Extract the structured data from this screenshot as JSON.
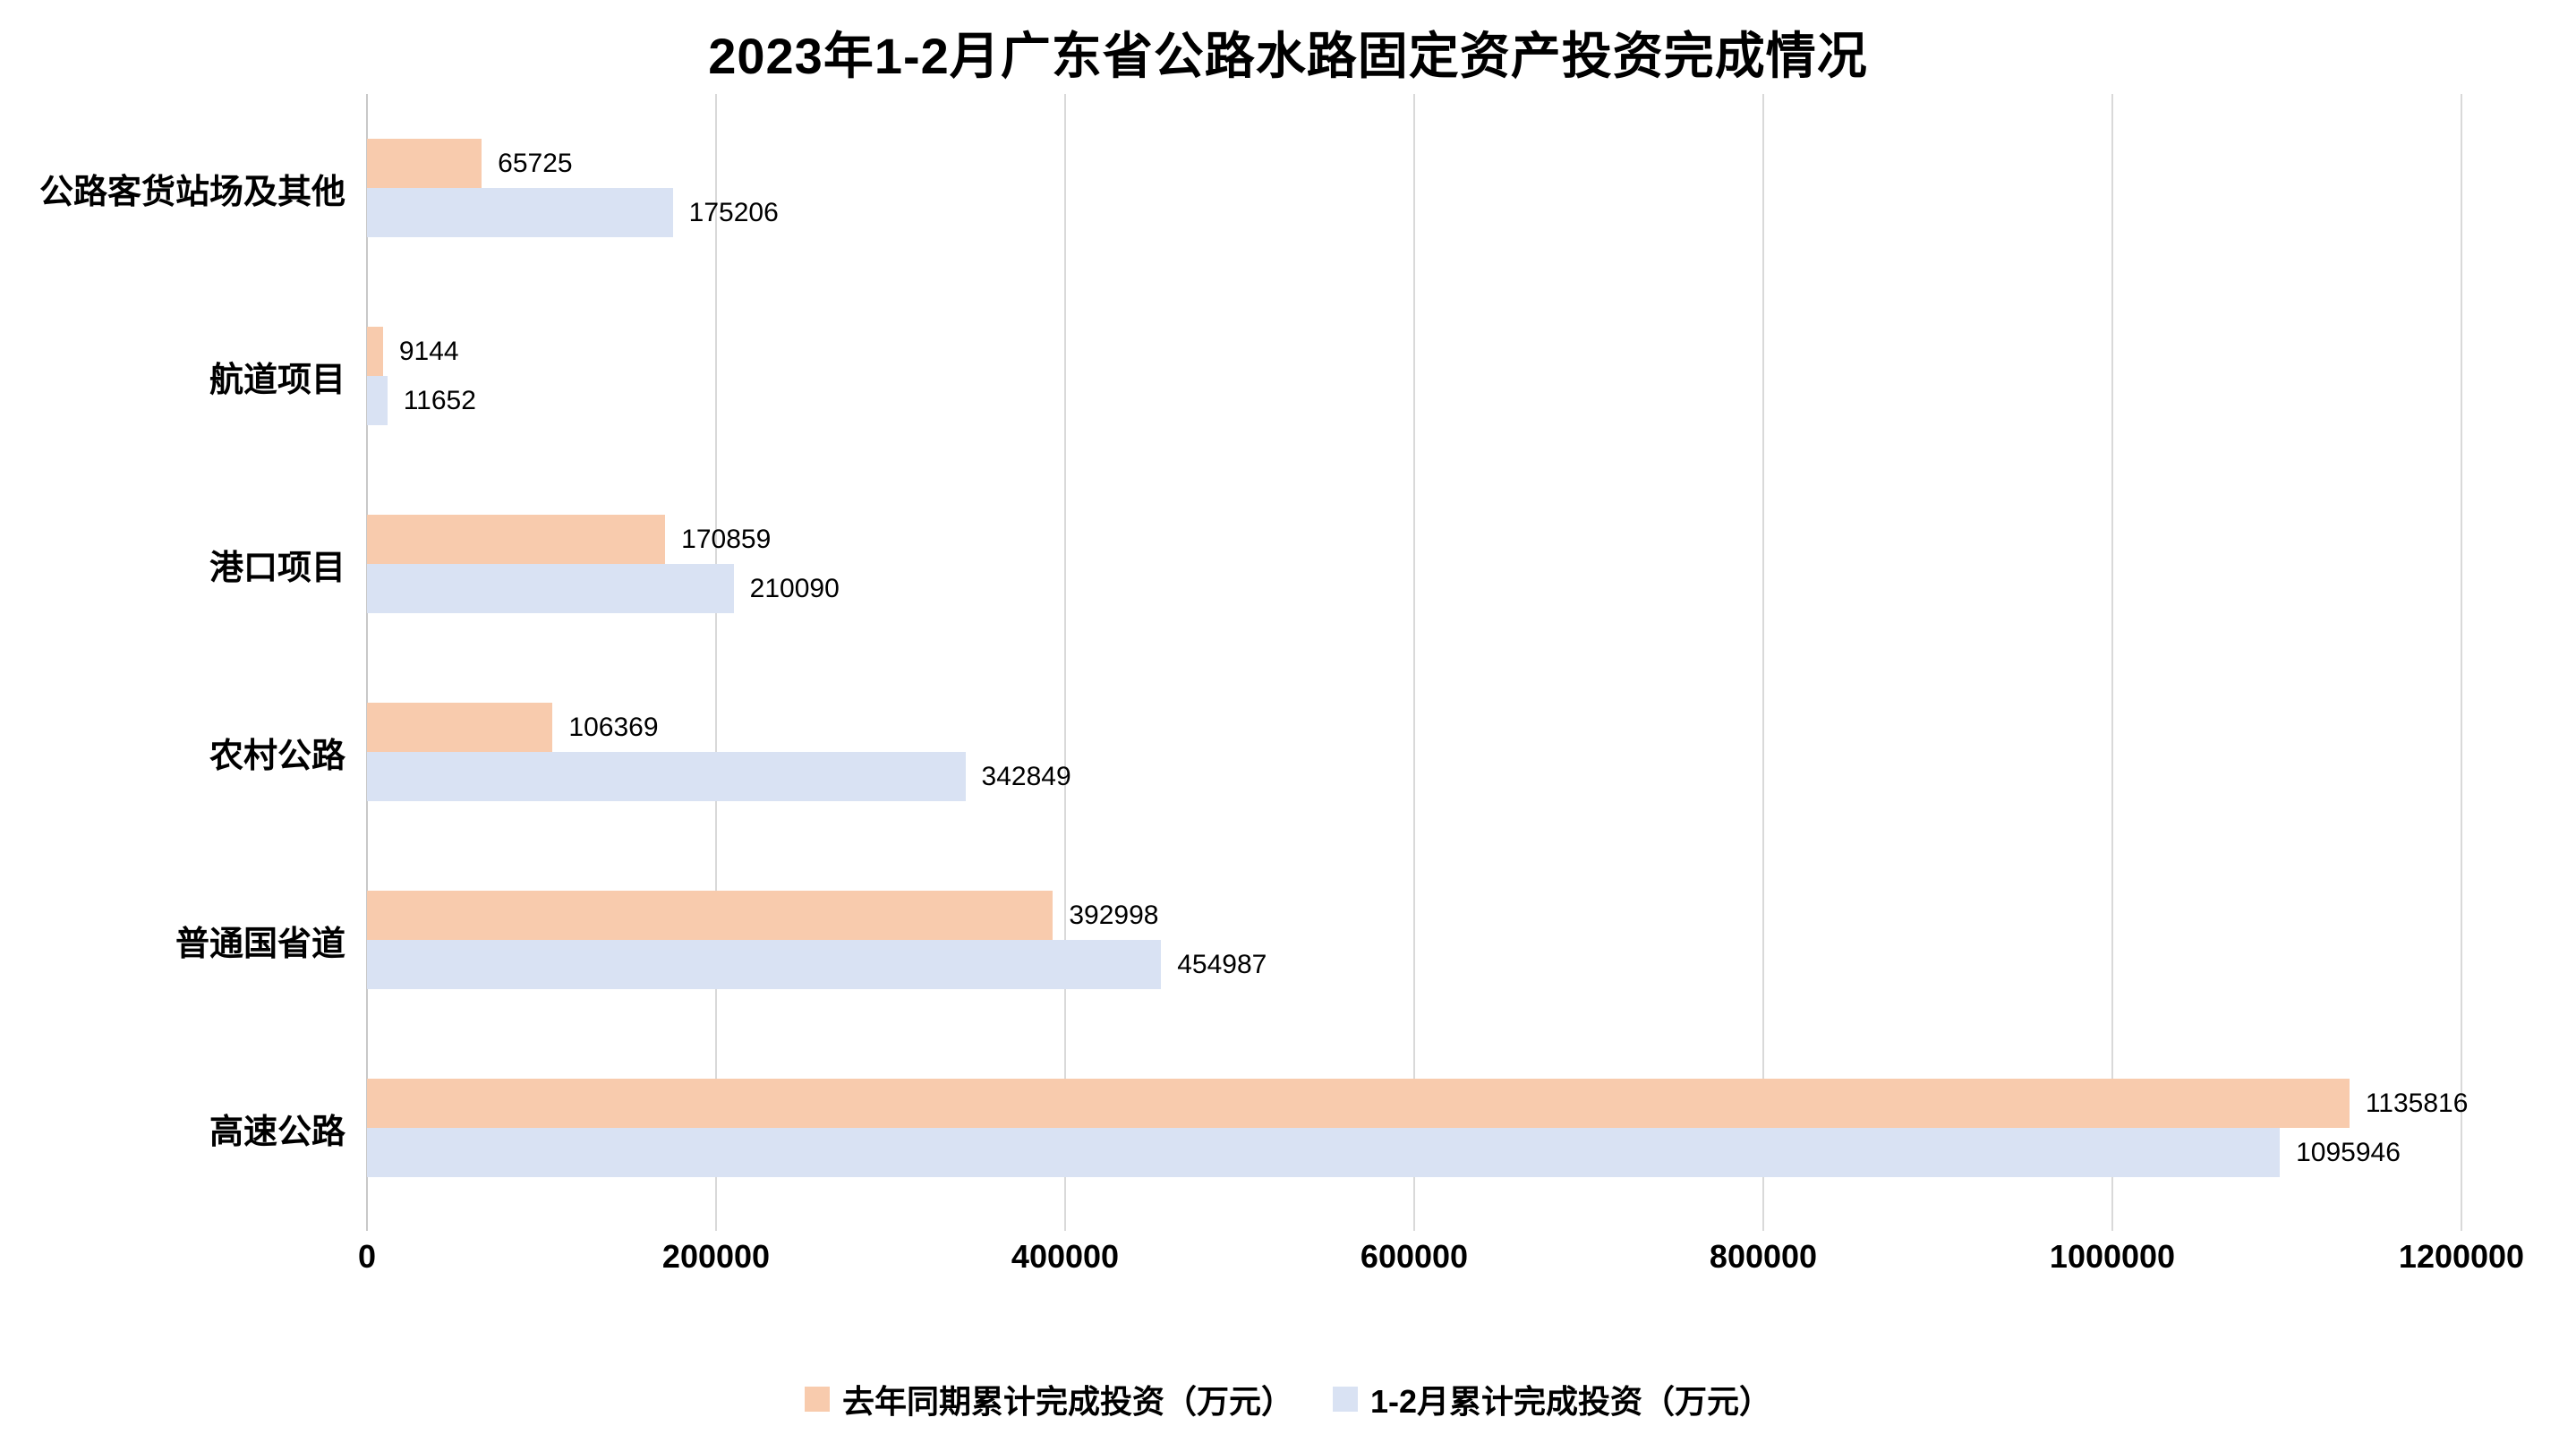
{
  "chart_data": {
    "type": "bar",
    "orientation": "horizontal",
    "title": "2023年1-2月广东省公路水路固定资产投资完成情况",
    "categories": [
      "公路客货站场及其他",
      "航道项目",
      "港口项目",
      "农村公路",
      "普通国省道",
      "高速公路"
    ],
    "series": [
      {
        "name": "去年同期累计完成投资（万元）",
        "color": "#F8CBAD",
        "values": [
          65725,
          9144,
          170859,
          106369,
          392998,
          1135816
        ]
      },
      {
        "name": "1-2月累计完成投资（万元）",
        "color": "#D9E2F3",
        "values": [
          175206,
          11652,
          210090,
          342849,
          454987,
          1095946
        ]
      }
    ],
    "xlim": [
      0,
      1200000
    ],
    "x_ticks": [
      0,
      200000,
      400000,
      600000,
      800000,
      1000000,
      1200000
    ],
    "grid": true,
    "value_labels": true,
    "legend_position": "bottom"
  },
  "colors": {
    "background": "#ffffff",
    "gridline": "#d9d9d9",
    "axis_line": "#c8c8c8",
    "text": "#000000"
  }
}
